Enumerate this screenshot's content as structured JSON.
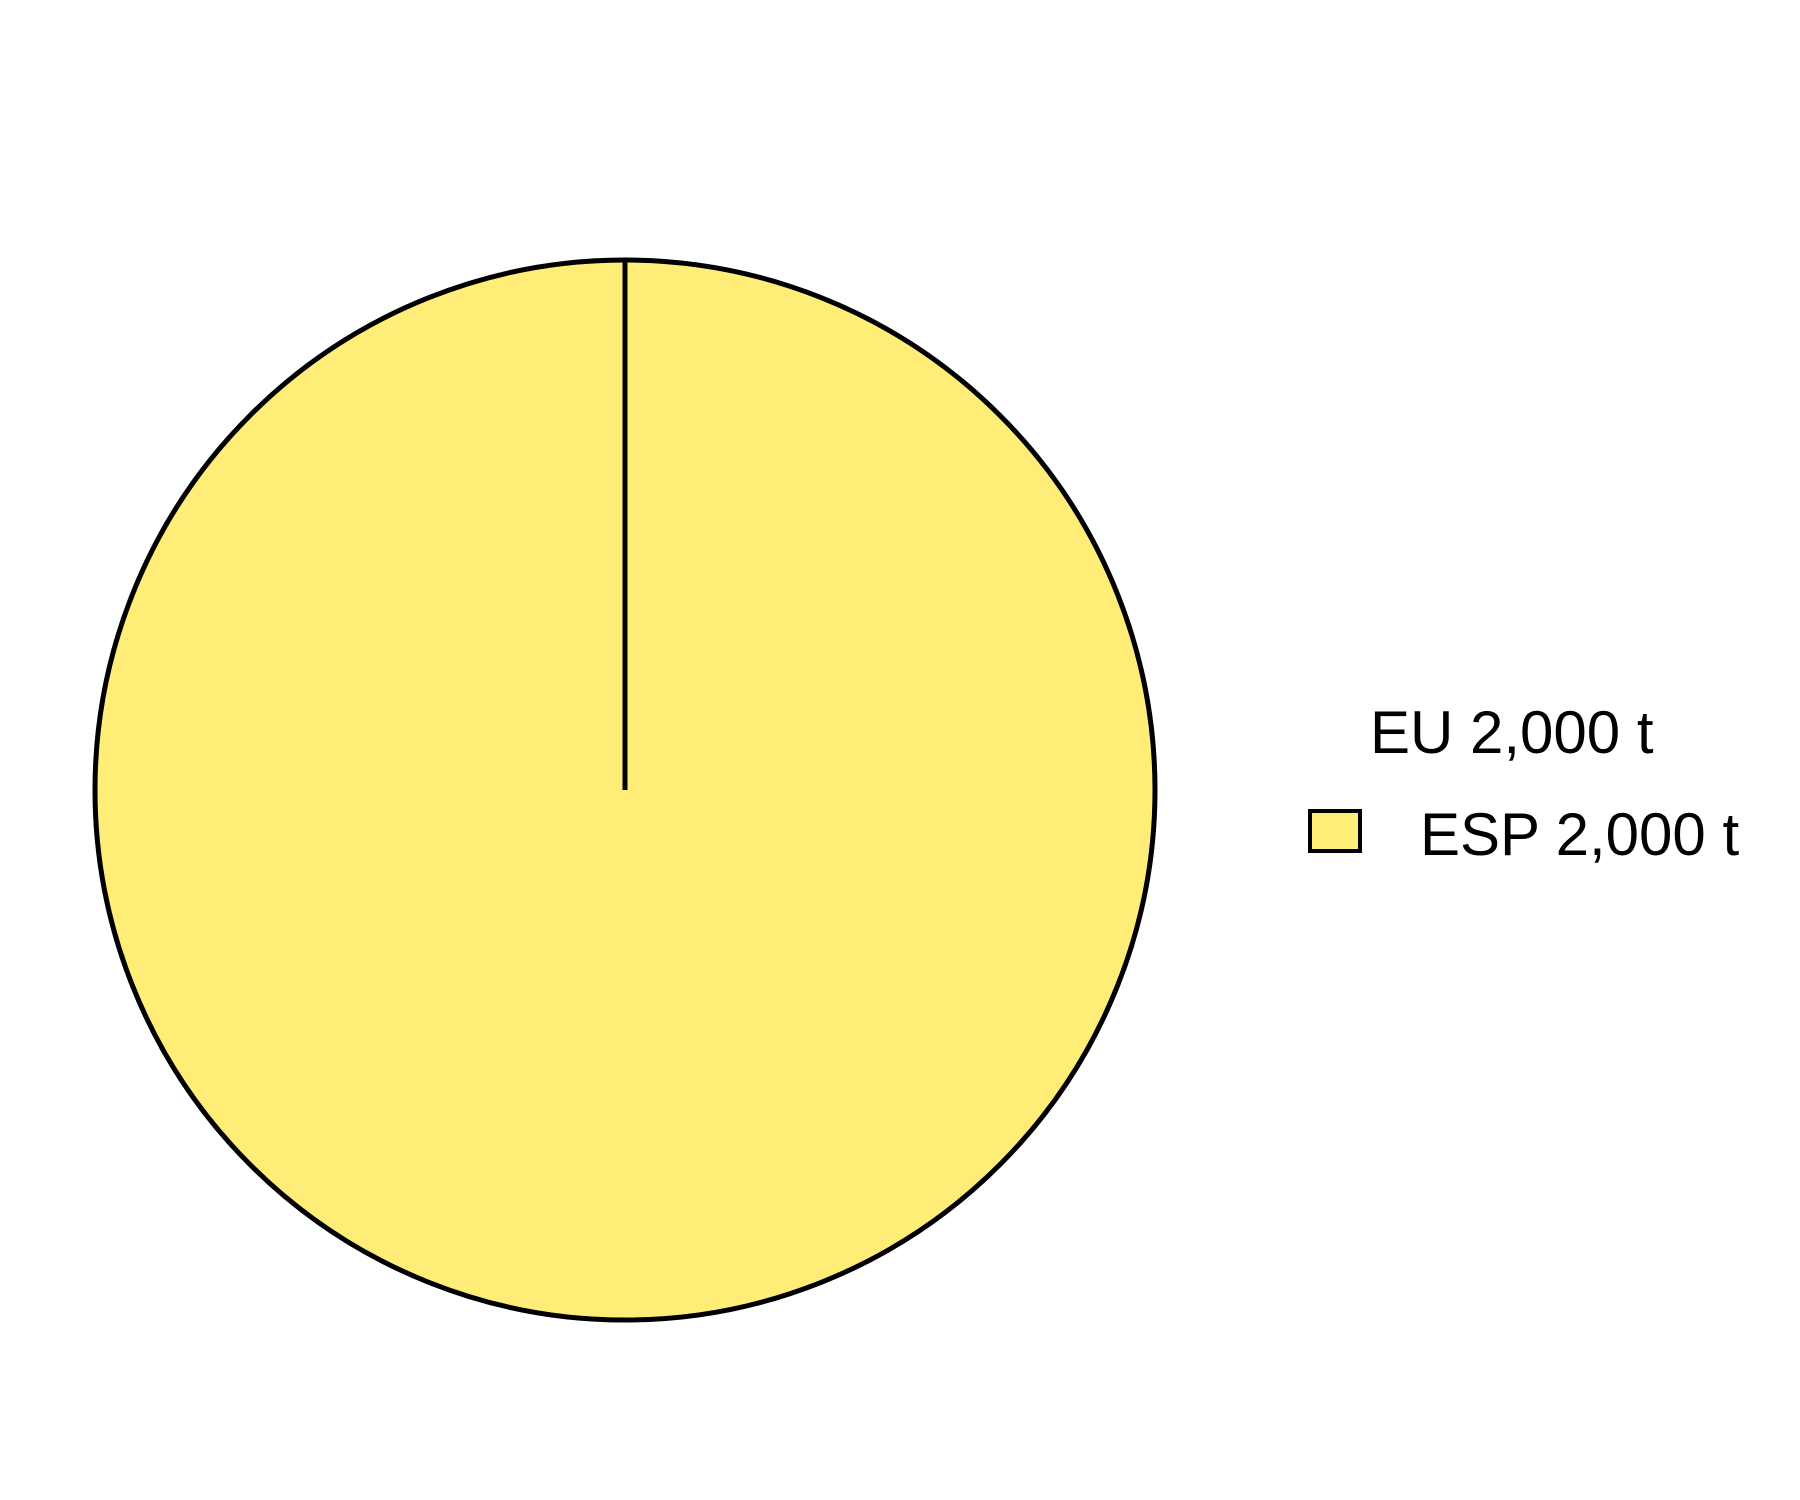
{
  "chart_data": {
    "type": "pie",
    "title": "",
    "legend": {
      "title": "EU 2,000 t",
      "placement": "right"
    },
    "slices": [
      {
        "label": "ESP 2,000 t",
        "value": 2000,
        "color": "#FFED77"
      }
    ],
    "stroke_color": "#000000"
  }
}
